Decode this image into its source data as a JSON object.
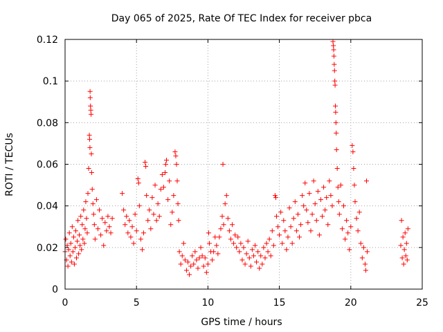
{
  "chart_data": {
    "type": "scatter",
    "title": "Day 065 of 2025, Rate Of TEC Index for receiver pbca",
    "xlabel": "GPS time / hours",
    "ylabel": "ROTI / TECUs",
    "xlim": [
      0,
      25
    ],
    "ylim": [
      0,
      0.12
    ],
    "xticks": [
      0,
      5,
      10,
      15,
      20,
      25
    ],
    "xtick_labels": [
      "0",
      "5",
      "10",
      "15",
      "20",
      "25"
    ],
    "yticks": [
      0,
      0.02,
      0.04,
      0.06,
      0.08,
      0.1,
      0.12
    ],
    "ytick_labels": [
      "0",
      "0.02",
      "0.04",
      "0.06",
      "0.08",
      "0.1",
      "0.12"
    ],
    "grid": true,
    "marker": "+",
    "color": "#ff0000",
    "series": [
      {
        "name": "ROTI",
        "points": [
          [
            0.0,
            0.018
          ],
          [
            0.05,
            0.024
          ],
          [
            0.1,
            0.014
          ],
          [
            0.15,
            0.021
          ],
          [
            0.2,
            0.011
          ],
          [
            0.25,
            0.019
          ],
          [
            0.3,
            0.027
          ],
          [
            0.35,
            0.016
          ],
          [
            0.4,
            0.022
          ],
          [
            0.45,
            0.013
          ],
          [
            0.5,
            0.03
          ],
          [
            0.55,
            0.018
          ],
          [
            0.6,
            0.025
          ],
          [
            0.65,
            0.012
          ],
          [
            0.7,
            0.02
          ],
          [
            0.75,
            0.028
          ],
          [
            0.8,
            0.015
          ],
          [
            0.85,
            0.023
          ],
          [
            0.9,
            0.033
          ],
          [
            0.95,
            0.017
          ],
          [
            1.0,
            0.026
          ],
          [
            1.05,
            0.021
          ],
          [
            1.1,
            0.035
          ],
          [
            1.15,
            0.019
          ],
          [
            1.2,
            0.031
          ],
          [
            1.25,
            0.024
          ],
          [
            1.3,
            0.038
          ],
          [
            1.35,
            0.022
          ],
          [
            1.4,
            0.029
          ],
          [
            1.45,
            0.042
          ],
          [
            1.5,
            0.034
          ],
          [
            1.55,
            0.027
          ],
          [
            1.6,
            0.046
          ],
          [
            1.65,
            0.058
          ],
          [
            1.7,
            0.074
          ],
          [
            1.72,
            0.072
          ],
          [
            1.74,
            0.068
          ],
          [
            1.75,
            0.095
          ],
          [
            1.76,
            0.092
          ],
          [
            1.78,
            0.088
          ],
          [
            1.8,
            0.086
          ],
          [
            1.82,
            0.084
          ],
          [
            1.84,
            0.065
          ],
          [
            1.86,
            0.056
          ],
          [
            1.9,
            0.048
          ],
          [
            1.95,
            0.041
          ],
          [
            2.0,
            0.036
          ],
          [
            2.05,
            0.031
          ],
          [
            2.1,
            0.024
          ],
          [
            2.2,
            0.043
          ],
          [
            2.3,
            0.029
          ],
          [
            2.4,
            0.038
          ],
          [
            2.5,
            0.026
          ],
          [
            2.6,
            0.034
          ],
          [
            2.7,
            0.021
          ],
          [
            2.8,
            0.032
          ],
          [
            2.9,
            0.028
          ],
          [
            3.0,
            0.035
          ],
          [
            3.1,
            0.03
          ],
          [
            3.2,
            0.027
          ],
          [
            3.3,
            0.034
          ],
          [
            4.0,
            0.046
          ],
          [
            4.1,
            0.038
          ],
          [
            4.2,
            0.031
          ],
          [
            4.3,
            0.035
          ],
          [
            4.4,
            0.027
          ],
          [
            4.5,
            0.033
          ],
          [
            4.6,
            0.025
          ],
          [
            4.7,
            0.03
          ],
          [
            4.8,
            0.022
          ],
          [
            4.9,
            0.036
          ],
          [
            5.0,
            0.028
          ],
          [
            5.1,
            0.053
          ],
          [
            5.15,
            0.051
          ],
          [
            5.2,
            0.04
          ],
          [
            5.3,
            0.024
          ],
          [
            5.4,
            0.019
          ],
          [
            5.5,
            0.027
          ],
          [
            5.6,
            0.061
          ],
          [
            5.65,
            0.059
          ],
          [
            5.7,
            0.045
          ],
          [
            5.8,
            0.033
          ],
          [
            5.9,
            0.038
          ],
          [
            6.0,
            0.029
          ],
          [
            6.1,
            0.044
          ],
          [
            6.2,
            0.036
          ],
          [
            6.3,
            0.05
          ],
          [
            6.4,
            0.033
          ],
          [
            6.5,
            0.041
          ],
          [
            6.6,
            0.035
          ],
          [
            6.7,
            0.048
          ],
          [
            6.8,
            0.055
          ],
          [
            6.9,
            0.049
          ],
          [
            7.0,
            0.056
          ],
          [
            7.05,
            0.06
          ],
          [
            7.1,
            0.062
          ],
          [
            7.2,
            0.043
          ],
          [
            7.3,
            0.052
          ],
          [
            7.4,
            0.031
          ],
          [
            7.5,
            0.037
          ],
          [
            7.6,
            0.045
          ],
          [
            7.7,
            0.066
          ],
          [
            7.75,
            0.064
          ],
          [
            7.8,
            0.06
          ],
          [
            7.85,
            0.052
          ],
          [
            7.9,
            0.041
          ],
          [
            7.95,
            0.033
          ],
          [
            8.0,
            0.018
          ],
          [
            8.1,
            0.012
          ],
          [
            8.2,
            0.016
          ],
          [
            8.3,
            0.022
          ],
          [
            8.4,
            0.014
          ],
          [
            8.5,
            0.009
          ],
          [
            8.6,
            0.013
          ],
          [
            8.7,
            0.007
          ],
          [
            8.8,
            0.011
          ],
          [
            8.9,
            0.016
          ],
          [
            9.0,
            0.012
          ],
          [
            9.1,
            0.018
          ],
          [
            9.2,
            0.014
          ],
          [
            9.3,
            0.01
          ],
          [
            9.4,
            0.015
          ],
          [
            9.5,
            0.02
          ],
          [
            9.6,
            0.016
          ],
          [
            9.7,
            0.011
          ],
          [
            9.8,
            0.015
          ],
          [
            9.9,
            0.008
          ],
          [
            10.0,
            0.012
          ],
          [
            10.05,
            0.027
          ],
          [
            10.1,
            0.022
          ],
          [
            10.2,
            0.018
          ],
          [
            10.3,
            0.014
          ],
          [
            10.4,
            0.018
          ],
          [
            10.5,
            0.025
          ],
          [
            10.6,
            0.021
          ],
          [
            10.7,
            0.017
          ],
          [
            10.8,
            0.025
          ],
          [
            10.9,
            0.029
          ],
          [
            11.0,
            0.035
          ],
          [
            11.05,
            0.06
          ],
          [
            11.1,
            0.031
          ],
          [
            11.2,
            0.041
          ],
          [
            11.3,
            0.045
          ],
          [
            11.4,
            0.034
          ],
          [
            11.5,
            0.028
          ],
          [
            11.6,
            0.024
          ],
          [
            11.7,
            0.031
          ],
          [
            11.8,
            0.022
          ],
          [
            11.9,
            0.026
          ],
          [
            12.0,
            0.02
          ],
          [
            12.1,
            0.025
          ],
          [
            12.2,
            0.018
          ],
          [
            12.3,
            0.022
          ],
          [
            12.4,
            0.014
          ],
          [
            12.5,
            0.02
          ],
          [
            12.6,
            0.012
          ],
          [
            12.7,
            0.017
          ],
          [
            12.8,
            0.023
          ],
          [
            12.9,
            0.015
          ],
          [
            13.0,
            0.011
          ],
          [
            13.1,
            0.019
          ],
          [
            13.2,
            0.016
          ],
          [
            13.3,
            0.021
          ],
          [
            13.4,
            0.013
          ],
          [
            13.5,
            0.018
          ],
          [
            13.6,
            0.01
          ],
          [
            13.7,
            0.016
          ],
          [
            13.8,
            0.012
          ],
          [
            13.9,
            0.02
          ],
          [
            14.0,
            0.015
          ],
          [
            14.1,
            0.022
          ],
          [
            14.2,
            0.018
          ],
          [
            14.3,
            0.024
          ],
          [
            14.4,
            0.016
          ],
          [
            14.5,
            0.028
          ],
          [
            14.6,
            0.021
          ],
          [
            14.7,
            0.045
          ],
          [
            14.75,
            0.044
          ],
          [
            14.8,
            0.035
          ],
          [
            14.9,
            0.03
          ],
          [
            15.0,
            0.026
          ],
          [
            15.1,
            0.037
          ],
          [
            15.2,
            0.022
          ],
          [
            15.3,
            0.033
          ],
          [
            15.4,
            0.028
          ],
          [
            15.5,
            0.019
          ],
          [
            15.6,
            0.025
          ],
          [
            15.7,
            0.039
          ],
          [
            15.8,
            0.03
          ],
          [
            15.9,
            0.022
          ],
          [
            16.0,
            0.034
          ],
          [
            16.1,
            0.042
          ],
          [
            16.2,
            0.028
          ],
          [
            16.3,
            0.036
          ],
          [
            16.4,
            0.025
          ],
          [
            16.5,
            0.031
          ],
          [
            16.6,
            0.045
          ],
          [
            16.7,
            0.04
          ],
          [
            16.8,
            0.051
          ],
          [
            16.9,
            0.038
          ],
          [
            17.0,
            0.032
          ],
          [
            17.1,
            0.046
          ],
          [
            17.2,
            0.028
          ],
          [
            17.3,
            0.036
          ],
          [
            17.4,
            0.052
          ],
          [
            17.5,
            0.041
          ],
          [
            17.6,
            0.033
          ],
          [
            17.7,
            0.047
          ],
          [
            17.8,
            0.026
          ],
          [
            17.9,
            0.043
          ],
          [
            18.0,
            0.035
          ],
          [
            18.1,
            0.049
          ],
          [
            18.2,
            0.038
          ],
          [
            18.3,
            0.044
          ],
          [
            18.4,
            0.031
          ],
          [
            18.5,
            0.052
          ],
          [
            18.6,
            0.045
          ],
          [
            18.7,
            0.04
          ],
          [
            18.75,
            0.119
          ],
          [
            18.78,
            0.117
          ],
          [
            18.8,
            0.115
          ],
          [
            18.82,
            0.112
          ],
          [
            18.84,
            0.108
          ],
          [
            18.86,
            0.105
          ],
          [
            18.88,
            0.1
          ],
          [
            18.9,
            0.098
          ],
          [
            18.92,
            0.088
          ],
          [
            18.94,
            0.085
          ],
          [
            18.96,
            0.08
          ],
          [
            18.98,
            0.075
          ],
          [
            19.0,
            0.067
          ],
          [
            19.05,
            0.058
          ],
          [
            19.1,
            0.049
          ],
          [
            19.15,
            0.042
          ],
          [
            19.2,
            0.036
          ],
          [
            19.3,
            0.05
          ],
          [
            19.4,
            0.029
          ],
          [
            19.5,
            0.04
          ],
          [
            19.6,
            0.024
          ],
          [
            19.7,
            0.033
          ],
          [
            19.8,
            0.027
          ],
          [
            19.9,
            0.019
          ],
          [
            20.0,
            0.03
          ],
          [
            20.1,
            0.069
          ],
          [
            20.15,
            0.066
          ],
          [
            20.2,
            0.058
          ],
          [
            20.25,
            0.05
          ],
          [
            20.3,
            0.042
          ],
          [
            20.4,
            0.034
          ],
          [
            20.5,
            0.028
          ],
          [
            20.6,
            0.037
          ],
          [
            20.7,
            0.022
          ],
          [
            20.8,
            0.015
          ],
          [
            20.9,
            0.02
          ],
          [
            21.0,
            0.012
          ],
          [
            21.05,
            0.009
          ],
          [
            21.1,
            0.052
          ],
          [
            21.15,
            0.018
          ],
          [
            23.5,
            0.021
          ],
          [
            23.55,
            0.033
          ],
          [
            23.6,
            0.015
          ],
          [
            23.65,
            0.025
          ],
          [
            23.7,
            0.012
          ],
          [
            23.75,
            0.019
          ],
          [
            23.8,
            0.027
          ],
          [
            23.85,
            0.016
          ],
          [
            23.9,
            0.022
          ],
          [
            23.95,
            0.014
          ],
          [
            24.0,
            0.029
          ]
        ]
      }
    ]
  }
}
